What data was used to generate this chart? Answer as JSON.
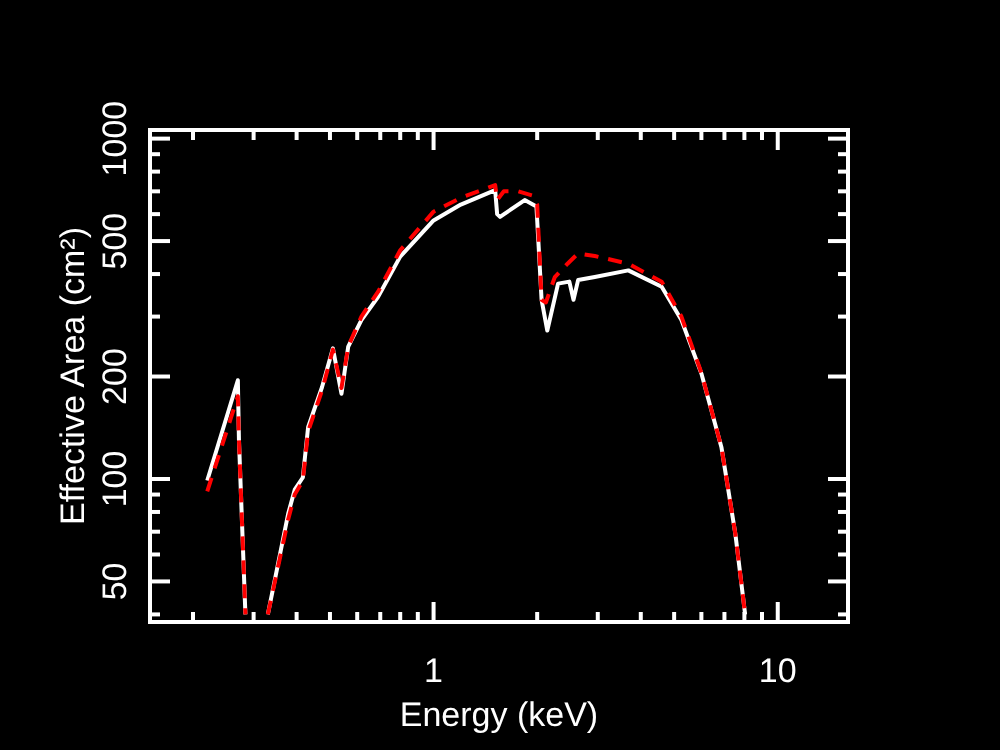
{
  "chart_data": {
    "type": "line",
    "xlabel": "Energy (keV)",
    "ylabel": "Effective Area (cm²)",
    "log": "xy",
    "grid": false,
    "xlim": [
      0.15,
      16
    ],
    "ylim": [
      38,
      1060
    ],
    "xticks": [
      {
        "value": 0.2,
        "label": null
      },
      {
        "value": 0.3,
        "label": null
      },
      {
        "value": 0.4,
        "label": null
      },
      {
        "value": 0.5,
        "label": null
      },
      {
        "value": 0.6,
        "label": null
      },
      {
        "value": 0.7,
        "label": null
      },
      {
        "value": 0.8,
        "label": null
      },
      {
        "value": 0.9,
        "label": null
      },
      1,
      {
        "value": 2,
        "label": null
      },
      {
        "value": 3,
        "label": null
      },
      {
        "value": 4,
        "label": null
      },
      {
        "value": 5,
        "label": null
      },
      {
        "value": 6,
        "label": null
      },
      {
        "value": 7,
        "label": null
      },
      {
        "value": 8,
        "label": null
      },
      {
        "value": 9,
        "label": null
      },
      10
    ],
    "yticks": [
      {
        "value": 40,
        "label": null
      },
      50,
      {
        "value": 60,
        "label": null
      },
      {
        "value": 70,
        "label": null
      },
      {
        "value": 80,
        "label": null
      },
      {
        "value": 90,
        "label": null
      },
      100,
      200,
      {
        "value": 300,
        "label": null
      },
      {
        "value": 400,
        "label": null
      },
      500,
      {
        "value": 600,
        "label": null
      },
      {
        "value": 700,
        "label": null
      },
      {
        "value": 800,
        "label": null
      },
      {
        "value": 900,
        "label": null
      },
      1000
    ],
    "series": [
      {
        "color": "#ffffff",
        "line_style": "solid",
        "x": [
          0.22,
          0.27,
          0.272,
          0.284,
          0.3,
          0.33,
          0.378,
          0.395,
          0.417,
          0.432,
          0.474,
          0.51,
          0.54,
          0.565,
          0.617,
          0.69,
          0.8,
          1.0,
          1.2,
          1.51,
          1.53,
          1.56,
          1.84,
          1.99,
          2.06,
          2.14,
          2.3,
          2.48,
          2.55,
          2.63,
          2.94,
          3.68,
          4.6,
          5.25,
          6.0,
          6.86,
          7.53,
          8.04
        ],
        "values": [
          99,
          195,
          130,
          40,
          null,
          40,
          79,
          93,
          101,
          142,
          186,
          242,
          178,
          245,
          293,
          343,
          450,
          575,
          640,
          706,
          600,
          589,
          660,
          632,
          336,
          273,
          375,
          380,
          336,
          384,
          392,
          410,
          367,
          293,
          204,
          124,
          69,
          40
        ]
      },
      {
        "color": "#ff0000",
        "line_style": "dashed",
        "x": [
          0.22,
          0.27,
          0.272,
          0.284,
          0.3,
          0.33,
          0.378,
          0.395,
          0.417,
          0.432,
          0.474,
          0.51,
          0.54,
          0.565,
          0.617,
          0.69,
          0.8,
          1.0,
          1.2,
          1.51,
          1.53,
          1.6,
          1.76,
          1.94,
          2.0,
          2.06,
          2.12,
          2.25,
          2.45,
          2.63,
          2.94,
          3.68,
          4.6,
          5.25,
          6.0,
          6.86,
          7.53,
          8.04
        ],
        "values": [
          92,
          175,
          130,
          40,
          null,
          40,
          76,
          90,
          99,
          138,
          182,
          240,
          185,
          245,
          300,
          355,
          470,
          610,
          670,
          730,
          660,
          700,
          700,
          680,
          640,
          336,
          330,
          392,
          429,
          460,
          452,
          429,
          380,
          300,
          205,
          124,
          69,
          40
        ]
      }
    ]
  }
}
